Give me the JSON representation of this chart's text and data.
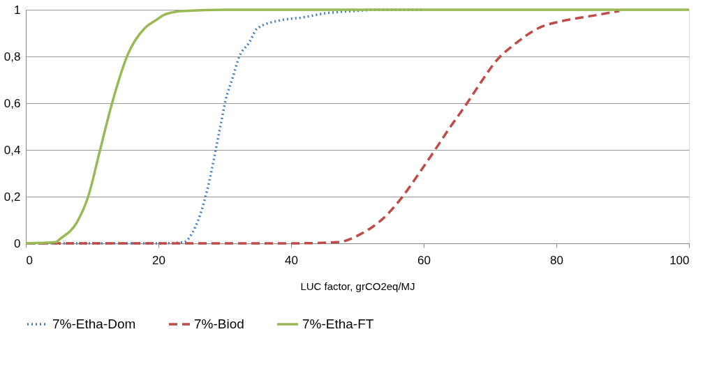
{
  "chart_data": {
    "type": "line",
    "xlabel": "LUC factor, grCO2eq/MJ",
    "xlim": [
      0,
      100
    ],
    "xticks": [
      0,
      20,
      40,
      60,
      80,
      100
    ],
    "ylim": [
      0,
      1
    ],
    "yticks": [
      0,
      {
        "value": 0.2,
        "label": "0,2"
      },
      {
        "value": 0.4,
        "label": "0,4"
      },
      {
        "value": 0.6,
        "label": "0,6"
      },
      {
        "value": 0.8,
        "label": "0,8"
      },
      1
    ],
    "grid": "y",
    "legend": "bottom",
    "marker": "none",
    "series": [
      {
        "name": "7%-Etha-Dom",
        "color": "#4a7ebb",
        "line_style": "dotted",
        "x": [
          0,
          10,
          20,
          23.8,
          25.2,
          26.6,
          28,
          28.7,
          29.4,
          30.1,
          31.2,
          32.2,
          33.7,
          34.9,
          38.2,
          41.7,
          45.2,
          49.8,
          53,
          60
        ],
        "values": [
          0,
          0,
          0,
          0.005,
          0.05,
          0.15,
          0.31,
          0.41,
          0.51,
          0.61,
          0.71,
          0.8,
          0.86,
          0.92,
          0.954,
          0.967,
          0.985,
          0.995,
          1,
          1
        ]
      },
      {
        "name": "7%-Biod",
        "color": "#be4b48",
        "line_style": "dashed",
        "x": [
          0,
          20,
          40,
          47,
          50.5,
          54,
          56.8,
          59.3,
          61.7,
          63.8,
          66.3,
          68.4,
          71.2,
          73.6,
          77.2,
          81.4,
          85.6,
          89.5
        ],
        "values": [
          0,
          0,
          0,
          0.005,
          0.04,
          0.11,
          0.2,
          0.3,
          0.4,
          0.49,
          0.59,
          0.68,
          0.79,
          0.85,
          0.92,
          0.955,
          0.975,
          0.995
        ]
      },
      {
        "name": "7%-Etha-FT",
        "color": "#98b954",
        "line_style": "solid",
        "x": [
          0,
          4.5,
          5.2,
          7.7,
          9.4,
          11.2,
          13,
          15.4,
          17.9,
          19.6,
          21,
          23.8,
          30,
          50,
          100
        ],
        "values": [
          0,
          0.005,
          0.02,
          0.09,
          0.2,
          0.4,
          0.6,
          0.81,
          0.92,
          0.955,
          0.98,
          0.995,
          1,
          1,
          1
        ]
      }
    ]
  }
}
